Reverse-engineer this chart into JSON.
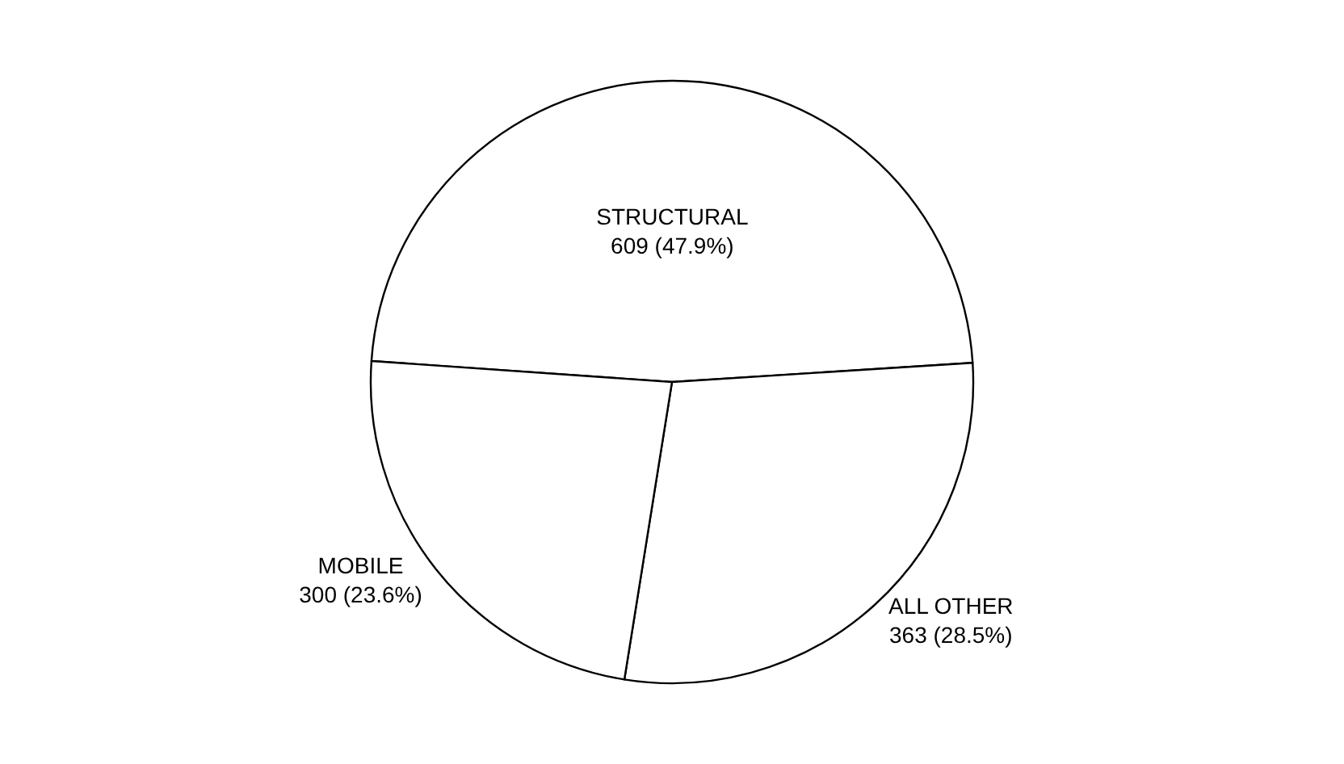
{
  "chart_data": {
    "type": "pie",
    "categories": [
      "STRUCTURAL",
      "ALL OTHER",
      "MOBILE"
    ],
    "values": [
      609,
      363,
      300
    ],
    "value_labels": [
      "609 (47.9%)",
      "363 (28.5%)",
      "300 (23.6%)"
    ],
    "colors": [
      "#ffffff",
      "#ffffff",
      "#ffffff"
    ],
    "legend": false
  }
}
